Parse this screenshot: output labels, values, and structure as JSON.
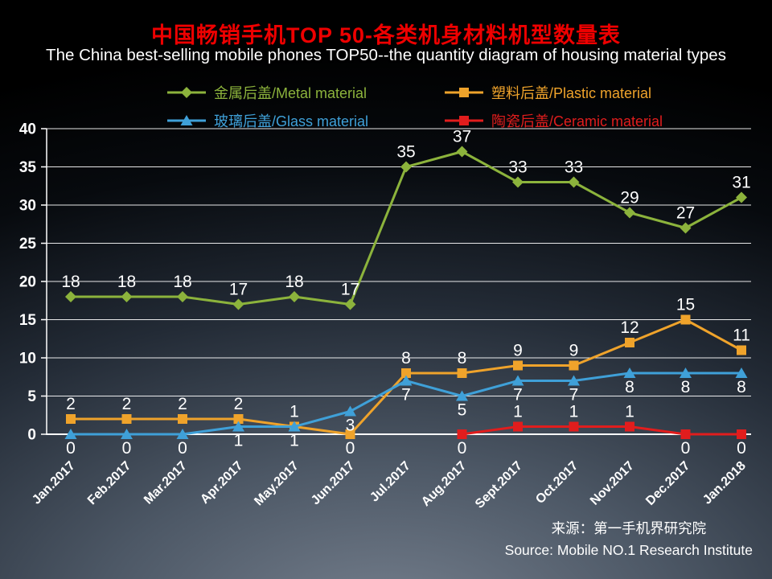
{
  "page": {
    "background_top": "#000000",
    "background_bottom": "#76808e"
  },
  "header": {
    "title": "中国畅销手机TOP 50-各类机身材料机型数量表",
    "title_color": "#ee0000",
    "subtitle": "The China best-selling mobile phones TOP50--the quantity diagram of housing material types",
    "subtitle_color": "#ffffff"
  },
  "source": {
    "line1": "来源：第一手机界研究院",
    "line2": "Source: Mobile NO.1 Research Institute"
  },
  "chart_data": {
    "type": "line",
    "title": "中国畅销手机TOP 50-各类机身材料机型数量表",
    "subtitle": "The China best-selling mobile phones TOP50--the quantity diagram of housing material types",
    "categories": [
      "Jan.2017",
      "Feb.2017",
      "Mar.2017",
      "Apr.2017",
      "May.2017",
      "Jun.2017",
      "Jul.2017",
      "Aug.2017",
      "Sept.2017",
      "Oct.2017",
      "Nov.2017",
      "Dec.2017",
      "Jan.2018"
    ],
    "ylim": [
      0,
      40
    ],
    "ytick_step": 5,
    "grid": true,
    "legend_position": "top",
    "axis_color": "#ffffff",
    "label_color": "#ffffff",
    "series": [
      {
        "key": "metal",
        "label": "金属后盖/Metal material",
        "color": "#8cb33c",
        "marker": "diamond",
        "values": [
          18,
          18,
          18,
          17,
          18,
          17,
          35,
          37,
          33,
          33,
          29,
          27,
          31
        ]
      },
      {
        "key": "plastic",
        "label": "塑料后盖/Plastic material",
        "color": "#efa32b",
        "marker": "square",
        "values": [
          2,
          2,
          2,
          2,
          1,
          0,
          8,
          8,
          9,
          9,
          12,
          15,
          11
        ]
      },
      {
        "key": "glass",
        "label": "玻璃后盖/Glass material",
        "color": "#3fa0d8",
        "marker": "triangle",
        "values": [
          0,
          0,
          0,
          1,
          1,
          3,
          7,
          5,
          7,
          7,
          8,
          8,
          8
        ]
      },
      {
        "key": "ceramic",
        "label": "陶瓷后盖/Ceramic material",
        "color": "#e11d1d",
        "marker": "square",
        "values": [
          null,
          null,
          null,
          null,
          null,
          null,
          null,
          0,
          1,
          1,
          1,
          0,
          0
        ]
      }
    ]
  }
}
